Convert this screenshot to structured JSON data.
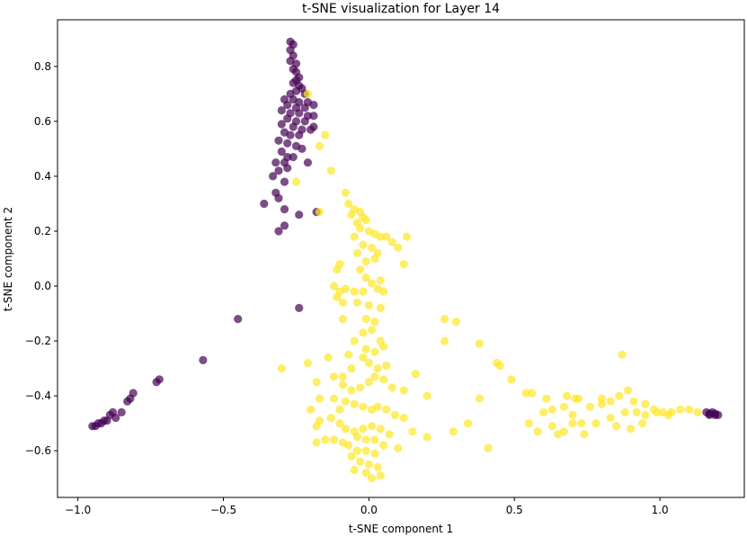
{
  "chart_data": {
    "type": "scatter",
    "title": "t-SNE visualization for Layer 14",
    "xlabel": "t-SNE component 1",
    "ylabel": "t-SNE component 2",
    "xlim": [
      -1.07,
      1.29
    ],
    "ylim": [
      -0.77,
      0.97
    ],
    "xticks": [
      -1.0,
      -0.5,
      0.0,
      0.5,
      1.0
    ],
    "xtick_labels": [
      "−1.0",
      "−0.5",
      "0.0",
      "0.5",
      "1.0"
    ],
    "yticks": [
      -0.6,
      -0.4,
      -0.2,
      0.0,
      0.2,
      0.4,
      0.6,
      0.8
    ],
    "ytick_labels": [
      "−0.6",
      "−0.4",
      "−0.2",
      "0.0",
      "0.2",
      "0.4",
      "0.6",
      "0.8"
    ],
    "grid": false,
    "legend": "none",
    "marker_alpha": 0.7,
    "series": [
      {
        "color": "#440154",
        "points": [
          [
            -0.27,
            0.89
          ],
          [
            -0.26,
            0.88
          ],
          [
            -0.27,
            0.86
          ],
          [
            -0.26,
            0.84
          ],
          [
            -0.27,
            0.82
          ],
          [
            -0.25,
            0.81
          ],
          [
            -0.26,
            0.79
          ],
          [
            -0.25,
            0.78
          ],
          [
            -0.24,
            0.76
          ],
          [
            -0.25,
            0.75
          ],
          [
            -0.26,
            0.74
          ],
          [
            -0.24,
            0.73
          ],
          [
            -0.23,
            0.72
          ],
          [
            -0.25,
            0.71
          ],
          [
            -0.27,
            0.7
          ],
          [
            -0.22,
            0.7
          ],
          [
            -0.29,
            0.68
          ],
          [
            -0.26,
            0.68
          ],
          [
            -0.24,
            0.67
          ],
          [
            -0.21,
            0.67
          ],
          [
            -0.28,
            0.66
          ],
          [
            -0.25,
            0.65
          ],
          [
            -0.22,
            0.65
          ],
          [
            -0.19,
            0.66
          ],
          [
            -0.3,
            0.64
          ],
          [
            -0.27,
            0.63
          ],
          [
            -0.24,
            0.63
          ],
          [
            -0.21,
            0.62
          ],
          [
            -0.19,
            0.62
          ],
          [
            -0.28,
            0.61
          ],
          [
            -0.25,
            0.6
          ],
          [
            -0.22,
            0.6
          ],
          [
            -0.3,
            0.59
          ],
          [
            -0.26,
            0.58
          ],
          [
            -0.23,
            0.57
          ],
          [
            -0.2,
            0.57
          ],
          [
            -0.19,
            0.58
          ],
          [
            -0.29,
            0.56
          ],
          [
            -0.27,
            0.55
          ],
          [
            -0.24,
            0.55
          ],
          [
            -0.31,
            0.53
          ],
          [
            -0.28,
            0.52
          ],
          [
            -0.25,
            0.51
          ],
          [
            -0.23,
            0.5
          ],
          [
            -0.3,
            0.49
          ],
          [
            -0.28,
            0.47
          ],
          [
            -0.26,
            0.47
          ],
          [
            -0.29,
            0.45
          ],
          [
            -0.32,
            0.45
          ],
          [
            -0.31,
            0.42
          ],
          [
            -0.28,
            0.43
          ],
          [
            -0.33,
            0.4
          ],
          [
            -0.29,
            0.38
          ],
          [
            -0.32,
            0.34
          ],
          [
            -0.31,
            0.32
          ],
          [
            -0.36,
            0.3
          ],
          [
            -0.29,
            0.28
          ],
          [
            -0.24,
            0.26
          ],
          [
            -0.29,
            0.22
          ],
          [
            -0.31,
            0.2
          ],
          [
            -0.21,
            0.45
          ],
          [
            -0.18,
            0.27
          ],
          [
            -0.45,
            -0.12
          ],
          [
            -0.24,
            -0.08
          ],
          [
            -0.57,
            -0.27
          ],
          [
            -0.72,
            -0.34
          ],
          [
            -0.73,
            -0.35
          ],
          [
            -0.81,
            -0.39
          ],
          [
            -0.82,
            -0.41
          ],
          [
            -0.83,
            -0.42
          ],
          [
            -0.85,
            -0.46
          ],
          [
            -0.88,
            -0.46
          ],
          [
            -0.89,
            -0.47
          ],
          [
            -0.87,
            -0.48
          ],
          [
            -0.9,
            -0.49
          ],
          [
            -0.91,
            -0.49
          ],
          [
            -0.92,
            -0.5
          ],
          [
            -0.93,
            -0.5
          ],
          [
            -0.94,
            -0.51
          ],
          [
            -0.95,
            -0.51
          ],
          [
            1.16,
            -0.46
          ],
          [
            1.17,
            -0.47
          ],
          [
            1.18,
            -0.46
          ],
          [
            1.19,
            -0.47
          ],
          [
            1.2,
            -0.47
          ],
          [
            1.17,
            -0.465
          ],
          [
            1.19,
            -0.465
          ]
        ]
      },
      {
        "color": "#fde725",
        "points": [
          [
            -0.21,
            0.7
          ],
          [
            -0.15,
            0.55
          ],
          [
            -0.17,
            0.51
          ],
          [
            -0.13,
            0.42
          ],
          [
            -0.25,
            0.38
          ],
          [
            -0.17,
            0.27
          ],
          [
            -0.08,
            0.34
          ],
          [
            -0.07,
            0.3
          ],
          [
            -0.05,
            0.28
          ],
          [
            -0.03,
            0.27
          ],
          [
            -0.02,
            0.25
          ],
          [
            -0.06,
            0.26
          ],
          [
            -0.04,
            0.23
          ],
          [
            -0.01,
            0.24
          ],
          [
            -0.03,
            0.21
          ],
          [
            0.0,
            0.2
          ],
          [
            0.02,
            0.19
          ],
          [
            0.04,
            0.18
          ],
          [
            0.06,
            0.18
          ],
          [
            0.13,
            0.18
          ],
          [
            -0.05,
            0.18
          ],
          [
            -0.02,
            0.15
          ],
          [
            0.01,
            0.14
          ],
          [
            0.03,
            0.12
          ],
          [
            0.08,
            0.16
          ],
          [
            0.1,
            0.14
          ],
          [
            -0.04,
            0.12
          ],
          [
            -0.01,
            0.09
          ],
          [
            0.02,
            0.1
          ],
          [
            -0.1,
            0.08
          ],
          [
            -0.11,
            0.06
          ],
          [
            -0.03,
            0.06
          ],
          [
            -0.01,
            0.03
          ],
          [
            0.01,
            0.01
          ],
          [
            0.04,
            0.02
          ],
          [
            0.12,
            0.08
          ],
          [
            -0.12,
            0.0
          ],
          [
            -0.1,
            -0.02
          ],
          [
            -0.08,
            -0.01
          ],
          [
            -0.05,
            -0.02
          ],
          [
            -0.02,
            -0.02
          ],
          [
            0.03,
            -0.01
          ],
          [
            0.05,
            -0.02
          ],
          [
            -0.11,
            -0.04
          ],
          [
            -0.09,
            -0.06
          ],
          [
            -0.04,
            -0.06
          ],
          [
            0.0,
            -0.07
          ],
          [
            0.04,
            -0.08
          ],
          [
            -0.09,
            -0.12
          ],
          [
            -0.01,
            -0.12
          ],
          [
            0.02,
            -0.13
          ],
          [
            0.01,
            -0.16
          ],
          [
            -0.02,
            -0.17
          ],
          [
            0.04,
            -0.2
          ],
          [
            0.05,
            -0.22
          ],
          [
            -0.01,
            -0.23
          ],
          [
            -0.05,
            -0.2
          ],
          [
            -0.07,
            -0.25
          ],
          [
            0.02,
            -0.24
          ],
          [
            -0.02,
            -0.26
          ],
          [
            0.0,
            -0.28
          ],
          [
            0.03,
            -0.3
          ],
          [
            0.06,
            -0.29
          ],
          [
            -0.06,
            -0.3
          ],
          [
            -0.21,
            -0.28
          ],
          [
            -0.3,
            -0.3
          ],
          [
            -0.14,
            -0.26
          ],
          [
            -0.18,
            -0.35
          ],
          [
            -0.12,
            -0.33
          ],
          [
            -0.09,
            -0.33
          ],
          [
            -0.09,
            -0.36
          ],
          [
            -0.06,
            -0.38
          ],
          [
            -0.03,
            -0.37
          ],
          [
            0.0,
            -0.35
          ],
          [
            0.02,
            -0.33
          ],
          [
            0.05,
            -0.34
          ],
          [
            0.08,
            -0.37
          ],
          [
            0.12,
            -0.38
          ],
          [
            0.16,
            -0.32
          ],
          [
            -0.17,
            -0.41
          ],
          [
            -0.12,
            -0.41
          ],
          [
            -0.08,
            -0.42
          ],
          [
            -0.05,
            -0.43
          ],
          [
            -0.02,
            -0.44
          ],
          [
            0.01,
            -0.45
          ],
          [
            0.03,
            -0.44
          ],
          [
            0.06,
            -0.45
          ],
          [
            0.09,
            -0.47
          ],
          [
            0.12,
            -0.48
          ],
          [
            0.2,
            -0.4
          ],
          [
            -0.2,
            -0.45
          ],
          [
            -0.17,
            -0.49
          ],
          [
            -0.13,
            -0.48
          ],
          [
            -0.1,
            -0.5
          ],
          [
            -0.08,
            -0.52
          ],
          [
            -0.05,
            -0.53
          ],
          [
            -0.02,
            -0.52
          ],
          [
            0.01,
            -0.51
          ],
          [
            0.04,
            -0.52
          ],
          [
            0.07,
            -0.54
          ],
          [
            -0.04,
            -0.55
          ],
          [
            -0.01,
            -0.56
          ],
          [
            0.02,
            -0.56
          ],
          [
            0.05,
            -0.58
          ],
          [
            -0.07,
            -0.58
          ],
          [
            -0.04,
            -0.6
          ],
          [
            -0.01,
            -0.6
          ],
          [
            0.02,
            -0.61
          ],
          [
            -0.03,
            -0.64
          ],
          [
            0.0,
            -0.65
          ],
          [
            0.03,
            -0.66
          ],
          [
            -0.01,
            -0.68
          ],
          [
            0.01,
            -0.7
          ],
          [
            0.04,
            -0.69
          ],
          [
            -0.06,
            -0.62
          ],
          [
            -0.05,
            -0.67
          ],
          [
            -0.18,
            -0.51
          ],
          [
            -0.15,
            -0.56
          ],
          [
            -0.12,
            -0.56
          ],
          [
            -0.09,
            -0.57
          ],
          [
            -0.18,
            -0.57
          ],
          [
            -0.1,
            -0.45
          ],
          [
            0.1,
            -0.59
          ],
          [
            0.15,
            -0.53
          ],
          [
            0.2,
            -0.55
          ],
          [
            0.29,
            -0.53
          ],
          [
            0.34,
            -0.5
          ],
          [
            0.38,
            -0.21
          ],
          [
            0.41,
            -0.59
          ],
          [
            0.26,
            -0.12
          ],
          [
            0.3,
            -0.13
          ],
          [
            0.26,
            -0.2
          ],
          [
            0.44,
            -0.28
          ],
          [
            0.45,
            -0.29
          ],
          [
            0.49,
            -0.34
          ],
          [
            0.38,
            -0.41
          ],
          [
            0.54,
            -0.39
          ],
          [
            0.56,
            -0.39
          ],
          [
            0.61,
            -0.41
          ],
          [
            0.68,
            -0.4
          ],
          [
            0.71,
            -0.41
          ],
          [
            0.8,
            -0.41
          ],
          [
            0.6,
            -0.46
          ],
          [
            0.63,
            -0.45
          ],
          [
            0.67,
            -0.44
          ],
          [
            0.7,
            -0.47
          ],
          [
            0.73,
            -0.5
          ],
          [
            0.76,
            -0.44
          ],
          [
            0.8,
            -0.43
          ],
          [
            0.83,
            -0.42
          ],
          [
            0.86,
            -0.4
          ],
          [
            0.89,
            -0.38
          ],
          [
            0.55,
            -0.5
          ],
          [
            0.58,
            -0.53
          ],
          [
            0.63,
            -0.51
          ],
          [
            0.67,
            -0.53
          ],
          [
            0.7,
            -0.5
          ],
          [
            0.74,
            -0.54
          ],
          [
            0.78,
            -0.5
          ],
          [
            0.83,
            -0.48
          ],
          [
            0.88,
            -0.46
          ],
          [
            0.92,
            -0.46
          ],
          [
            0.95,
            -0.47
          ],
          [
            0.98,
            -0.45
          ],
          [
            1.01,
            -0.46
          ],
          [
            1.04,
            -0.46
          ],
          [
            1.07,
            -0.45
          ],
          [
            1.1,
            -0.45
          ],
          [
            1.13,
            -0.46
          ],
          [
            0.91,
            -0.42
          ],
          [
            0.95,
            -0.43
          ],
          [
            0.85,
            -0.51
          ],
          [
            0.9,
            -0.52
          ],
          [
            0.94,
            -0.5
          ],
          [
            0.99,
            -0.46
          ],
          [
            1.03,
            -0.47
          ],
          [
            0.87,
            -0.25
          ],
          [
            0.65,
            -0.54
          ],
          [
            0.72,
            -0.41
          ]
        ]
      }
    ]
  }
}
